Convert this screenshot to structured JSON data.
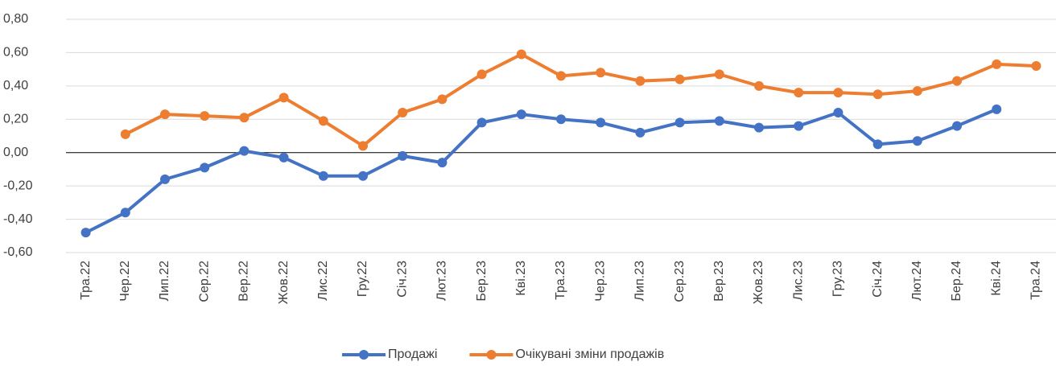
{
  "chart_data": {
    "type": "line",
    "categories": [
      "Тра.22",
      "Чер.22",
      "Лип.22",
      "Сер.22",
      "Вер.22",
      "Жов.22",
      "Лис.22",
      "Гру.22",
      "Січ.23",
      "Лют.23",
      "Бер.23",
      "Кві.23",
      "Тра.23",
      "Чер.23",
      "Лип.23",
      "Сер.23",
      "Вер.23",
      "Жов.23",
      "Лис.23",
      "Гру.23",
      "Січ.24",
      "Лют.24",
      "Бер.24",
      "Кві.24",
      "Тра.24"
    ],
    "series": [
      {
        "name": "Продажі",
        "color": "#4472c4",
        "values": [
          -0.48,
          -0.36,
          -0.16,
          -0.09,
          0.01,
          -0.03,
          -0.14,
          -0.14,
          -0.02,
          -0.06,
          0.18,
          0.23,
          0.2,
          0.18,
          0.12,
          0.18,
          0.19,
          0.15,
          0.16,
          0.24,
          0.05,
          0.07,
          0.16,
          0.26,
          null
        ]
      },
      {
        "name": "Очікувані зміни продажів",
        "color": "#ed7d31",
        "values": [
          null,
          0.11,
          0.23,
          0.22,
          0.21,
          0.33,
          0.19,
          0.04,
          0.24,
          0.32,
          0.47,
          0.59,
          0.46,
          0.48,
          0.43,
          0.44,
          0.47,
          0.4,
          0.36,
          0.36,
          0.35,
          0.37,
          0.43,
          0.53,
          0.52
        ]
      }
    ],
    "ylim": [
      -0.6,
      0.8
    ],
    "yticks": [
      {
        "value": -0.6,
        "label": "-0,60"
      },
      {
        "value": -0.4,
        "label": "-0,40"
      },
      {
        "value": -0.2,
        "label": "-0,20"
      },
      {
        "value": 0,
        "label": "0,00"
      },
      {
        "value": 0.2,
        "label": "0,20"
      },
      {
        "value": 0.4,
        "label": "0,40"
      },
      {
        "value": 0.6,
        "label": "0,60"
      },
      {
        "value": 0.8,
        "label": "0,80"
      }
    ],
    "grid": true,
    "legend": "bottom"
  }
}
